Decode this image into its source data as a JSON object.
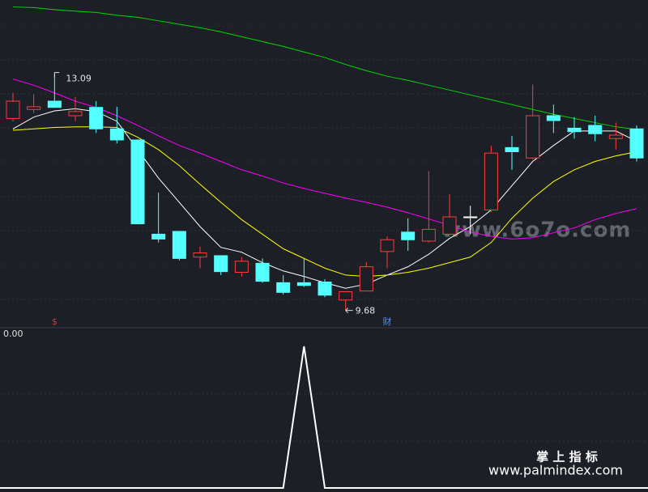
{
  "chart_data": [
    {
      "type": "candlestick",
      "open": [
        12.45,
        12.58,
        12.7,
        12.49,
        12.61,
        12.3,
        12.14,
        10.78,
        10.82,
        10.45,
        10.47,
        10.23,
        10.36,
        10.08,
        10.08,
        10.09,
        9.83,
        9.96,
        10.53,
        10.81,
        10.68,
        10.78,
        11.03,
        11.13,
        12.03,
        11.88,
        12.49,
        12.31,
        12.35,
        12.16,
        12.3
      ],
      "high": [
        12.82,
        12.8,
        13.09,
        12.76,
        12.7,
        12.62,
        12.14,
        11.38,
        10.82,
        10.6,
        10.47,
        10.45,
        10.43,
        10.19,
        10.43,
        10.13,
        9.95,
        10.38,
        10.75,
        11.01,
        11.69,
        11.36,
        11.19,
        12.06,
        12.2,
        12.94,
        12.65,
        12.47,
        12.49,
        12.39,
        12.35
      ],
      "low": [
        12.41,
        12.53,
        12.61,
        12.41,
        12.24,
        12.09,
        10.93,
        10.66,
        10.4,
        10.29,
        10.19,
        10.17,
        10.08,
        9.91,
        10.02,
        9.87,
        9.68,
        9.96,
        10.29,
        10.54,
        10.66,
        10.78,
        10.78,
        11.1,
        11.71,
        11.86,
        12.24,
        12.16,
        12.12,
        12.0,
        11.83
      ],
      "close": [
        12.7,
        12.62,
        12.61,
        12.55,
        12.3,
        12.14,
        10.93,
        10.71,
        10.43,
        10.51,
        10.24,
        10.39,
        10.1,
        9.94,
        10.04,
        9.9,
        9.95,
        10.31,
        10.7,
        10.7,
        10.85,
        11.03,
        11.03,
        11.95,
        11.97,
        12.49,
        12.42,
        12.26,
        12.23,
        12.21,
        11.88
      ],
      "up_color": "#ff3b3b",
      "down_color": "#54ffff",
      "flat_color": "#ffffff",
      "series": [
        {
          "color": "#ffffff",
          "values": [
            12.3,
            12.47,
            12.56,
            12.59,
            12.55,
            12.41,
            12.0,
            11.59,
            11.24,
            10.89,
            10.59,
            10.52,
            10.37,
            10.25,
            10.17,
            10.08,
            10.0,
            10.06,
            10.19,
            10.31,
            10.49,
            10.72,
            10.89,
            11.13,
            11.48,
            11.83,
            12.06,
            12.27,
            12.27,
            12.27,
            12.12
          ]
        },
        {
          "color": "#ffff00",
          "values": [
            12.28,
            12.3,
            12.32,
            12.33,
            12.33,
            12.32,
            12.18,
            12.0,
            11.77,
            11.5,
            11.24,
            10.99,
            10.78,
            10.57,
            10.43,
            10.29,
            10.19,
            10.17,
            10.19,
            10.23,
            10.29,
            10.37,
            10.45,
            10.66,
            11.01,
            11.3,
            11.54,
            11.71,
            11.83,
            11.91,
            11.97
          ]
        },
        {
          "color": "#ff00ff",
          "values": [
            13.02,
            12.93,
            12.82,
            12.7,
            12.61,
            12.49,
            12.35,
            12.2,
            12.06,
            11.95,
            11.83,
            11.71,
            11.62,
            11.52,
            11.44,
            11.37,
            11.3,
            11.24,
            11.17,
            11.09,
            11.0,
            10.91,
            10.81,
            10.75,
            10.71,
            10.73,
            10.8,
            10.87,
            10.99,
            11.08,
            11.15
          ]
        },
        {
          "color": "#00d800",
          "values": [
            14.06,
            14.05,
            14.02,
            14.0,
            13.98,
            13.94,
            13.91,
            13.86,
            13.81,
            13.76,
            13.7,
            13.63,
            13.56,
            13.49,
            13.41,
            13.33,
            13.23,
            13.14,
            13.06,
            13.0,
            12.93,
            12.86,
            12.79,
            12.72,
            12.65,
            12.58,
            12.51,
            12.45,
            12.39,
            12.33,
            12.29
          ]
        }
      ],
      "ylim": [
        9.43,
        14.16
      ],
      "markers": [
        {
          "index": 2,
          "text": "$",
          "color": "#ff2a2a"
        },
        {
          "index": 18,
          "text": "财",
          "color": "#4a90ff"
        }
      ]
    },
    {
      "type": "line",
      "value_label": "0.00",
      "color": "#ffffff",
      "values": [
        0,
        0,
        0,
        0,
        0,
        0,
        0,
        0,
        0,
        0,
        0,
        0,
        0,
        0,
        1,
        0,
        0,
        0,
        0,
        0,
        0,
        0,
        0,
        0,
        0,
        0,
        0,
        0,
        0,
        0,
        0
      ],
      "ylim": [
        0,
        1
      ]
    }
  ],
  "watermarks": {
    "site": "www.6o7o.com",
    "brand": "掌 上 指 标",
    "url": "www.palmindex.com"
  }
}
